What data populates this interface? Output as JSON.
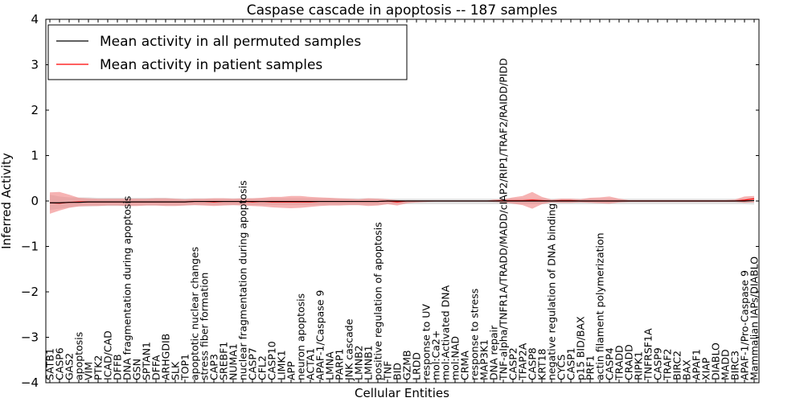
{
  "chart_data": {
    "type": "line",
    "title": "Caspase cascade in apoptosis -- 187 samples",
    "xlabel": "Cellular Entities",
    "ylabel": "Inferred Activity",
    "ylim": [
      -4,
      4
    ],
    "yticks": [
      -4,
      -3,
      -2,
      -1,
      0,
      1,
      2,
      3,
      4
    ],
    "ytick_labels": [
      "−4",
      "−3",
      "−2",
      "−1",
      "0",
      "1",
      "2",
      "3",
      "4"
    ],
    "legend_position": "top-left",
    "categories": [
      "SATB1",
      "CASP6",
      "GAS2",
      "apoptosis",
      "VIM",
      "PTK2",
      "ICAD/CAD",
      "DFFB",
      "DNA fragmentation during apoptosis",
      "GSN",
      "SPTAN1",
      "DFFA",
      "ARHGDIB",
      "SLK",
      "TOP1",
      "apoptotic nuclear changes",
      "stress fiber formation",
      "CAP3",
      "SREBF1",
      "NUMA1",
      "nuclear fragmentation during apoptosis",
      "CASP7",
      "CFL2",
      "CASP10",
      "LIMK1",
      "APP",
      "neuron apoptosis",
      "ACTA1",
      "APAF-1/Caspase 9",
      "LMNA",
      "PARP1",
      "JNK cascade",
      "LMNB2",
      "LMNB1",
      "positive regulation of apoptosis",
      "TNF",
      "BID",
      "GZMB",
      "LRDD",
      "response to UV",
      "mol:Ca2+",
      "mol:Activated DNA",
      "mol:NAD",
      "CRMA",
      "response to stress",
      "MAP3K1",
      "DNA repair",
      "TNF-alpha/TNFR1A/TRADD/MADD/cIAP2/RIP1/TRAF2/RAIDD/PIDD",
      "CASP2",
      "TFAP2A",
      "CASP8",
      "KRT18",
      "negative regulation of DNA binding",
      "CYCS",
      "CASP1",
      "p15 BID/BAX",
      "PRF1",
      "actin filament polymerization",
      "CASP4",
      "TRADD",
      "CRADD",
      "RIPK1",
      "TNFRSF1A",
      "CASP9",
      "TRAF2",
      "BIRC2",
      "BAX",
      "APAF1",
      "XIAP",
      "DIABLO",
      "MADD",
      "BIRC3",
      "APAF-1/Pro-Caspase 9",
      "Mammalian IAPs/DIABLO"
    ],
    "series": [
      {
        "name": "Mean activity in all permuted samples",
        "color": "#000000",
        "band_color": "#c8c8c8",
        "values": [
          -0.04,
          -0.04,
          -0.03,
          -0.03,
          -0.02,
          -0.02,
          -0.02,
          -0.02,
          -0.02,
          -0.02,
          -0.02,
          -0.02,
          -0.02,
          -0.02,
          -0.02,
          -0.01,
          -0.01,
          -0.01,
          -0.01,
          -0.01,
          -0.01,
          -0.01,
          -0.01,
          -0.01,
          -0.01,
          -0.01,
          -0.01,
          -0.01,
          -0.01,
          -0.01,
          -0.01,
          -0.01,
          -0.01,
          -0.01,
          -0.01,
          0,
          0,
          0,
          0,
          0,
          0,
          0,
          0,
          0,
          0,
          0,
          0,
          0,
          0,
          0,
          0,
          0,
          0,
          0,
          0,
          0,
          0,
          0,
          0,
          0,
          0,
          0,
          0,
          0,
          0,
          0,
          0,
          0,
          0,
          0,
          0,
          0,
          0,
          0.01
        ],
        "band_upper": [
          0.14,
          0.1,
          0.08,
          0.08,
          0.08,
          0.07,
          0.07,
          0.07,
          0.07,
          0.07,
          0.07,
          0.07,
          0.07,
          0.06,
          0.06,
          0.06,
          0.06,
          0.06,
          0.06,
          0.06,
          0.06,
          0.06,
          0.06,
          0.06,
          0.06,
          0.06,
          0.06,
          0.06,
          0.06,
          0.06,
          0.06,
          0.06,
          0.06,
          0.06,
          0.06,
          0.05,
          0.05,
          0.05,
          0.05,
          0.05,
          0.05,
          0.05,
          0.05,
          0.05,
          0.05,
          0.05,
          0.05,
          0.05,
          0.05,
          0.05,
          0.05,
          0.05,
          0.05,
          0.05,
          0.05,
          0.05,
          0.05,
          0.05,
          0.05,
          0.05,
          0.05,
          0.05,
          0.05,
          0.05,
          0.05,
          0.05,
          0.05,
          0.05,
          0.05,
          0.05,
          0.05,
          0.05,
          0.05,
          0.07
        ],
        "band_lower": [
          -0.2,
          -0.17,
          -0.14,
          -0.12,
          -0.12,
          -0.11,
          -0.11,
          -0.11,
          -0.11,
          -0.1,
          -0.1,
          -0.1,
          -0.1,
          -0.1,
          -0.1,
          -0.09,
          -0.09,
          -0.09,
          -0.09,
          -0.09,
          -0.09,
          -0.09,
          -0.09,
          -0.09,
          -0.09,
          -0.09,
          -0.09,
          -0.09,
          -0.09,
          -0.09,
          -0.09,
          -0.09,
          -0.09,
          -0.09,
          -0.09,
          -0.07,
          -0.07,
          -0.07,
          -0.07,
          -0.07,
          -0.07,
          -0.07,
          -0.07,
          -0.07,
          -0.07,
          -0.07,
          -0.07,
          -0.07,
          -0.07,
          -0.07,
          -0.07,
          -0.07,
          -0.07,
          -0.07,
          -0.07,
          -0.07,
          -0.07,
          -0.07,
          -0.07,
          -0.07,
          -0.07,
          -0.07,
          -0.07,
          -0.07,
          -0.07,
          -0.07,
          -0.07,
          -0.07,
          -0.07,
          -0.07,
          -0.07,
          -0.07,
          -0.07,
          -0.08
        ]
      },
      {
        "name": "Mean activity in patient samples",
        "color": "#ff0000",
        "band_color": "#f08080",
        "values": [
          -0.04,
          -0.05,
          -0.03,
          -0.02,
          -0.02,
          -0.02,
          -0.02,
          -0.02,
          -0.02,
          -0.02,
          -0.02,
          -0.02,
          -0.02,
          -0.02,
          -0.02,
          -0.01,
          -0.01,
          -0.02,
          -0.01,
          -0.01,
          -0.01,
          -0.02,
          -0.01,
          -0.02,
          -0.02,
          -0.02,
          -0.02,
          -0.02,
          -0.01,
          -0.01,
          -0.01,
          -0.01,
          -0.01,
          -0.01,
          -0.01,
          0,
          -0.02,
          0,
          0,
          0,
          0,
          0,
          0,
          0,
          0,
          0,
          0,
          0.01,
          0.01,
          0.01,
          0.02,
          0.01,
          0,
          0.01,
          0.01,
          0,
          0,
          0,
          0,
          0,
          0,
          0,
          0,
          0,
          0,
          0,
          0,
          0,
          0,
          0,
          0,
          0,
          0.02,
          0.05
        ],
        "band_upper": [
          0.19,
          0.2,
          0.14,
          0.07,
          0.06,
          0.05,
          0.05,
          0.05,
          0.05,
          0.05,
          0.05,
          0.06,
          0.06,
          0.05,
          0.04,
          0.05,
          0.05,
          0.06,
          0.06,
          0.05,
          0.06,
          0.06,
          0.07,
          0.09,
          0.09,
          0.11,
          0.11,
          0.09,
          0.08,
          0.07,
          0.06,
          0.05,
          0.04,
          0.06,
          0.05,
          0.04,
          0.02,
          0.01,
          0.01,
          0,
          0,
          0,
          0,
          0,
          0,
          0,
          0.03,
          0.04,
          0.08,
          0.11,
          0.2,
          0.09,
          0.03,
          0.05,
          0.05,
          0.04,
          0.07,
          0.08,
          0.1,
          0.05,
          0.02,
          0.02,
          0.02,
          0.02,
          0.02,
          0.02,
          0.02,
          0.02,
          0.02,
          0.02,
          0.02,
          0.03,
          0.1,
          0.11
        ],
        "band_lower": [
          -0.28,
          -0.21,
          -0.15,
          -0.12,
          -0.11,
          -0.11,
          -0.1,
          -0.1,
          -0.11,
          -0.11,
          -0.1,
          -0.1,
          -0.11,
          -0.11,
          -0.1,
          -0.09,
          -0.1,
          -0.11,
          -0.1,
          -0.09,
          -0.1,
          -0.11,
          -0.12,
          -0.14,
          -0.15,
          -0.16,
          -0.15,
          -0.13,
          -0.11,
          -0.1,
          -0.1,
          -0.09,
          -0.09,
          -0.11,
          -0.1,
          -0.07,
          -0.1,
          -0.05,
          -0.03,
          -0.02,
          -0.01,
          0,
          0,
          0,
          0,
          0,
          -0.02,
          -0.03,
          -0.06,
          -0.09,
          -0.17,
          -0.07,
          -0.03,
          -0.04,
          -0.04,
          -0.03,
          -0.04,
          -0.05,
          -0.06,
          -0.03,
          -0.02,
          -0.02,
          -0.02,
          -0.02,
          -0.02,
          -0.02,
          -0.02,
          -0.02,
          -0.02,
          -0.02,
          -0.02,
          -0.02,
          -0.04,
          -0.03
        ]
      }
    ]
  }
}
